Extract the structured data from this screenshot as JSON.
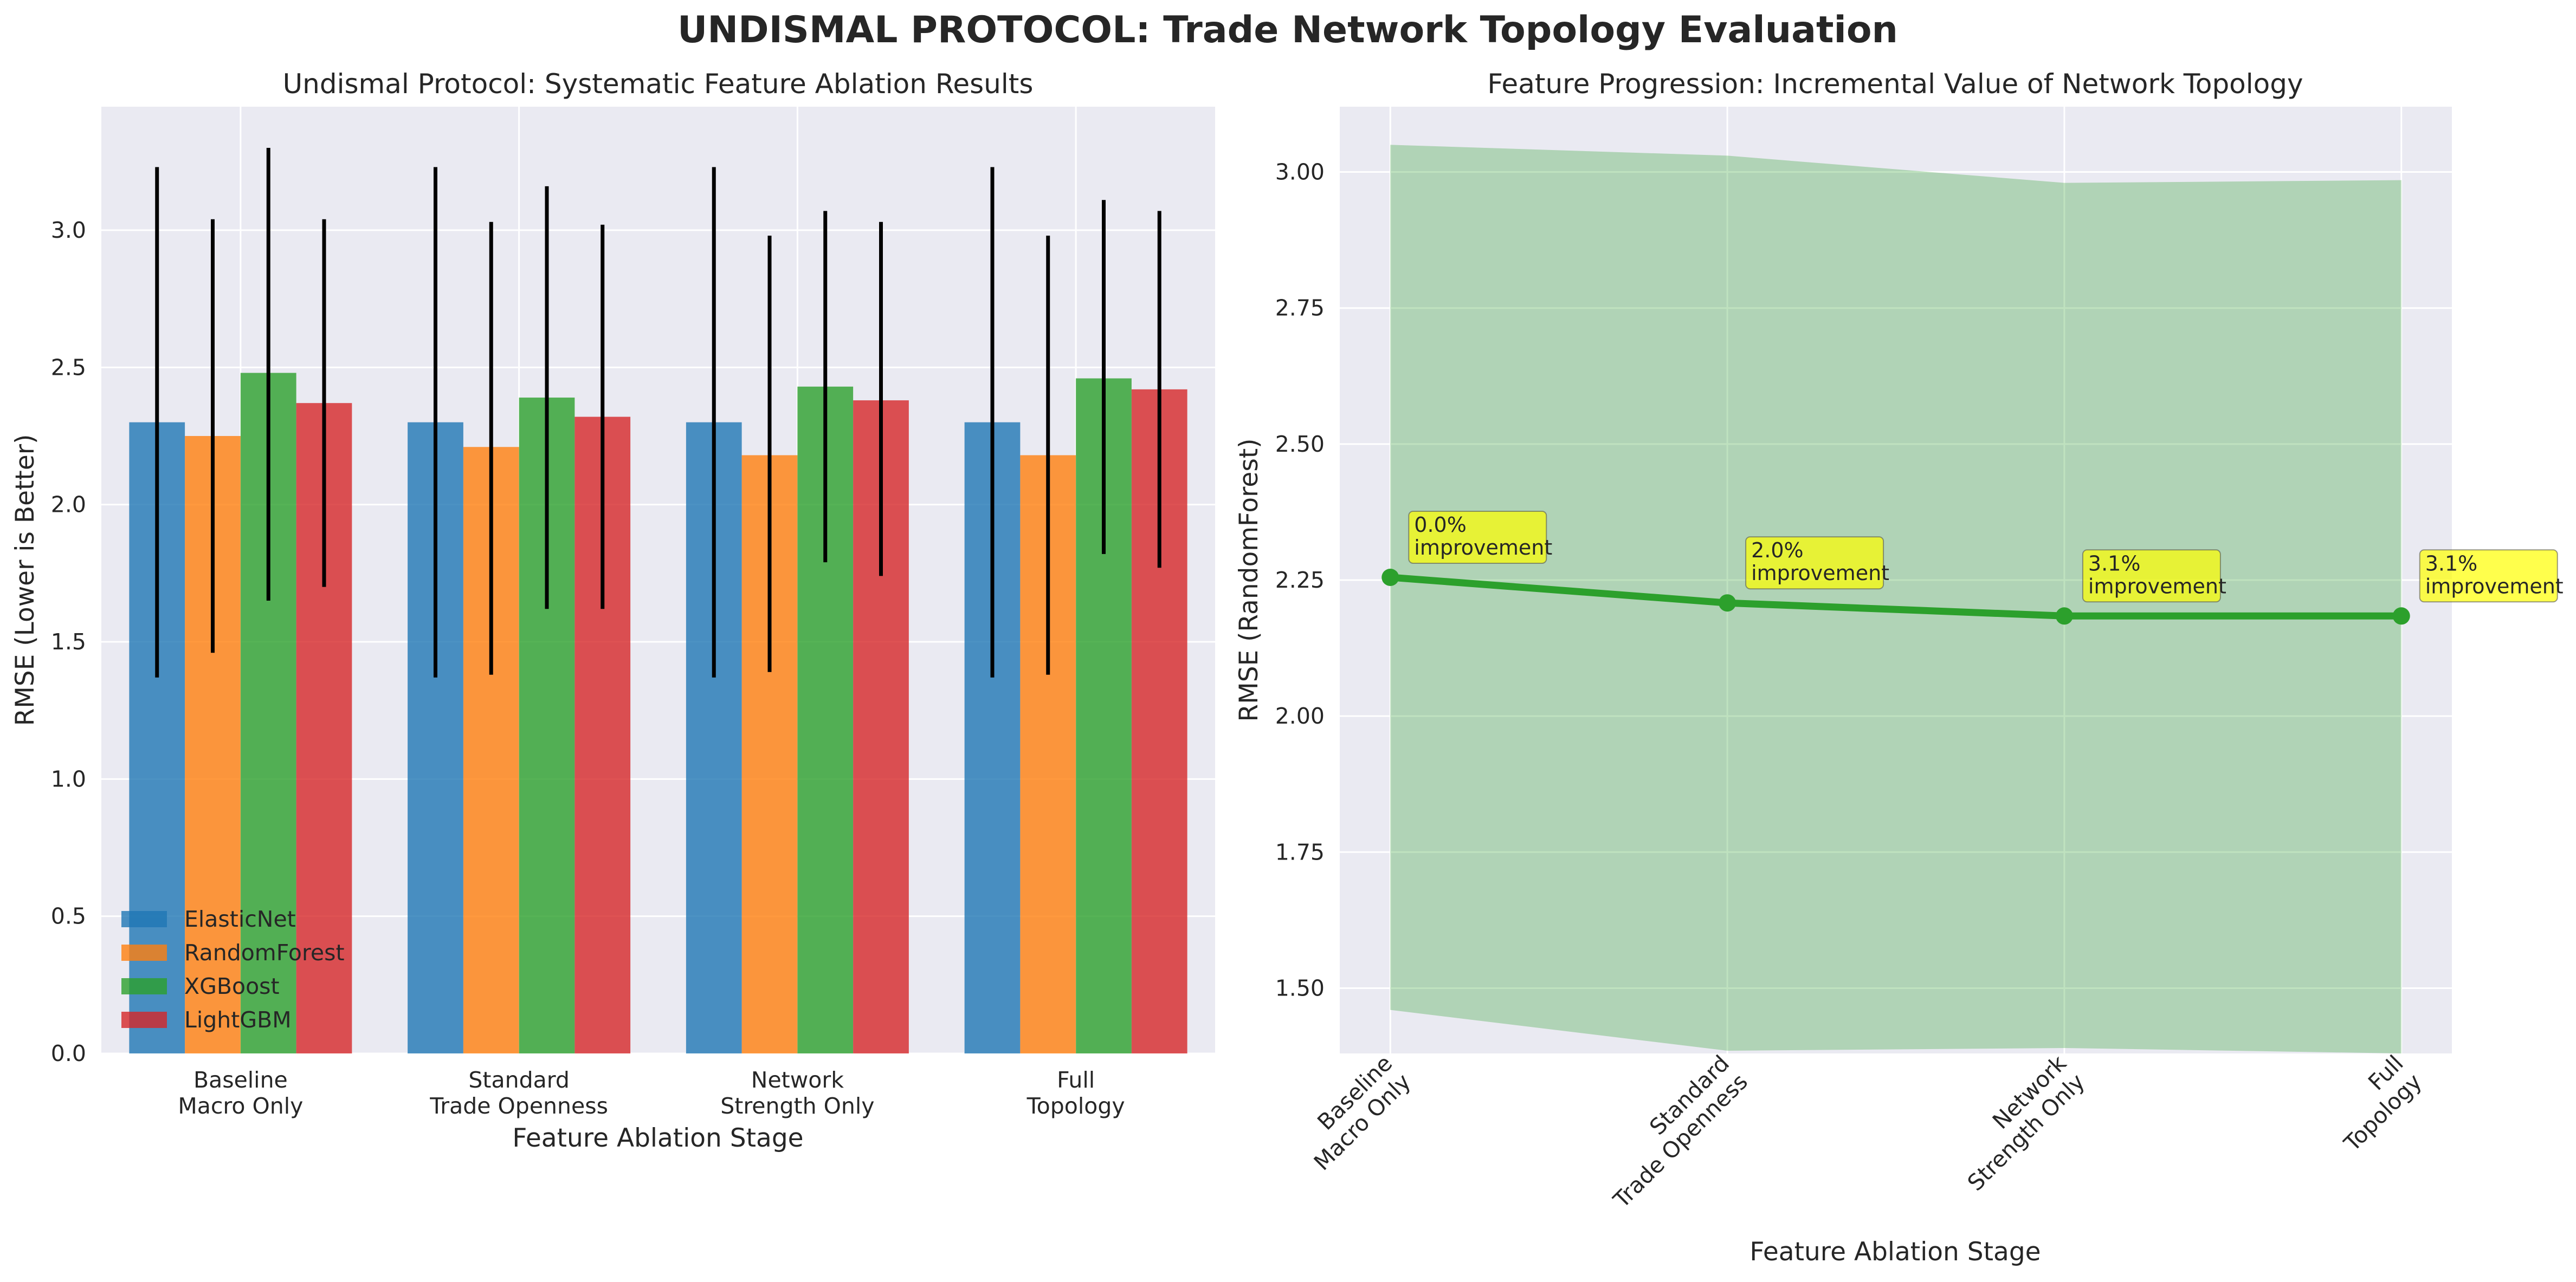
{
  "figure": {
    "suptitle": "UNDISMAL PROTOCOL: Trade Network Topology Evaluation"
  },
  "chart_data": [
    {
      "type": "bar",
      "title": "Undismal Protocol: Systematic Feature Ablation Results",
      "xlabel": "Feature Ablation Stage",
      "ylabel": "RMSE (Lower is Better)",
      "categories": [
        [
          "Baseline",
          "Macro Only"
        ],
        [
          "Standard",
          "Trade Openness"
        ],
        [
          "Network",
          "Strength Only"
        ],
        [
          "Full",
          "Topology"
        ]
      ],
      "ylim": [
        0,
        3.45
      ],
      "yticks": [
        0.0,
        0.5,
        1.0,
        1.5,
        2.0,
        2.5,
        3.0
      ],
      "grid": true,
      "legend_position": "lower-left",
      "series": [
        {
          "name": "ElasticNet",
          "color": "#1f77b4",
          "values": [
            2.3,
            2.3,
            2.3,
            2.3
          ],
          "error_low": [
            1.37,
            1.37,
            1.37,
            1.37
          ],
          "error_high": [
            3.23,
            3.23,
            3.23,
            3.23
          ]
        },
        {
          "name": "RandomForest",
          "color": "#ff7f0e",
          "values": [
            2.25,
            2.21,
            2.18,
            2.18
          ],
          "error_low": [
            1.46,
            1.38,
            1.39,
            1.38
          ],
          "error_high": [
            3.04,
            3.03,
            2.98,
            2.98
          ]
        },
        {
          "name": "XGBoost",
          "color": "#2ca02c",
          "values": [
            2.48,
            2.39,
            2.43,
            2.46
          ],
          "error_low": [
            1.65,
            1.62,
            1.79,
            1.82
          ],
          "error_high": [
            3.3,
            3.16,
            3.07,
            3.11
          ]
        },
        {
          "name": "LightGBM",
          "color": "#d62728",
          "values": [
            2.37,
            2.32,
            2.38,
            2.42
          ],
          "error_low": [
            1.7,
            1.62,
            1.74,
            1.77
          ],
          "error_high": [
            3.04,
            3.02,
            3.03,
            3.07
          ]
        }
      ]
    },
    {
      "type": "line",
      "title": "Feature Progression: Incremental Value of Network Topology",
      "xlabel": "Feature Ablation Stage",
      "ylabel": "RMSE (RandomForest)",
      "categories": [
        [
          "Baseline",
          "Macro Only"
        ],
        [
          "Standard",
          "Trade Openness"
        ],
        [
          "Network",
          "Strength Only"
        ],
        [
          "Full",
          "Topology"
        ]
      ],
      "ylim": [
        1.38,
        3.12
      ],
      "yticks": [
        1.5,
        1.75,
        2.0,
        2.25,
        2.5,
        2.75,
        3.0
      ],
      "ytick_labels": [
        "1.50",
        "1.75",
        "2.00",
        "2.25",
        "2.50",
        "2.75",
        "3.00"
      ],
      "grid": true,
      "series": [
        {
          "color": "#2ca02c",
          "values": [
            2.255,
            2.208,
            2.184,
            2.184
          ],
          "band_low": [
            1.46,
            1.385,
            1.39,
            1.38
          ],
          "band_high": [
            3.05,
            3.03,
            2.98,
            2.985
          ]
        }
      ],
      "annotations": [
        [
          "0.0%",
          "improvement"
        ],
        [
          "2.0%",
          "improvement"
        ],
        [
          "3.1%",
          "improvement"
        ],
        [
          "3.1%",
          "improvement"
        ]
      ],
      "annotation_color": "#ffff00",
      "band_color": "#2ca02c"
    }
  ]
}
